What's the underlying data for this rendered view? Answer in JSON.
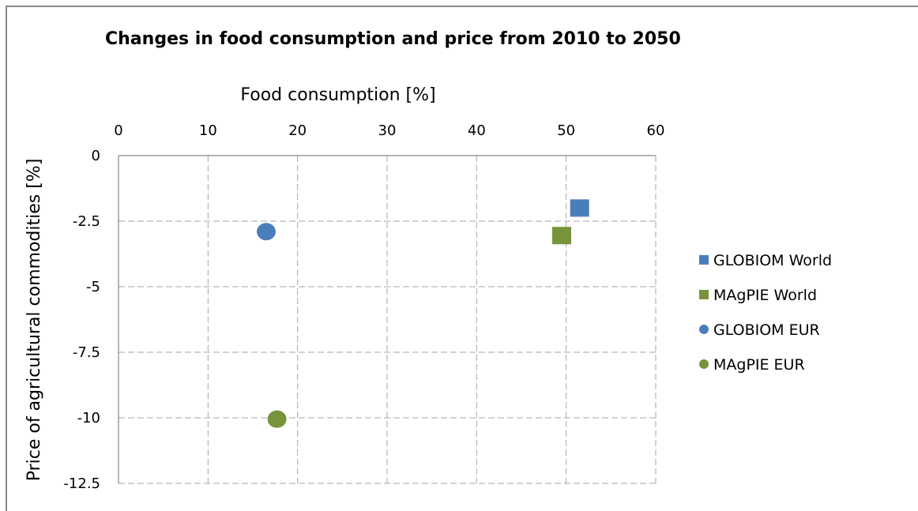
{
  "chart_data": {
    "type": "scatter",
    "title": "Changes in food consumption and price from 2010 to 2050",
    "xlabel": "Food consumption [%]",
    "ylabel": "Price of agricultural commodities [%]",
    "x_axis_position": "top",
    "xlim": [
      0,
      60
    ],
    "ylim": [
      -12.5,
      0
    ],
    "x_ticks": [
      "0",
      "10",
      "20",
      "30",
      "40",
      "50",
      "60"
    ],
    "y_ticks": [
      "0",
      "-2.5",
      "-5",
      "-7.5",
      "-10",
      "-12.5"
    ],
    "x_tick_values": [
      0,
      10,
      20,
      30,
      40,
      50,
      60
    ],
    "y_tick_values": [
      0,
      -2.5,
      -5,
      -7.5,
      -10,
      -12.5
    ],
    "grid": true,
    "grid_style": "dashed",
    "legend_position": "right",
    "series": [
      {
        "name": "GLOBIOM World",
        "marker": "square",
        "color": "#4a7ebb",
        "points": [
          {
            "x": 51.5,
            "y": -2.0
          }
        ]
      },
      {
        "name": "MAgPIE World",
        "marker": "square",
        "color": "#77933c",
        "points": [
          {
            "x": 49.5,
            "y": -3.05
          }
        ]
      },
      {
        "name": "GLOBIOM EUR",
        "marker": "circle",
        "color": "#4a7ebb",
        "points": [
          {
            "x": 16.5,
            "y": -2.9
          }
        ]
      },
      {
        "name": "MAgPIE EUR",
        "marker": "circle",
        "color": "#77933c",
        "points": [
          {
            "x": 17.7,
            "y": -10.05
          }
        ]
      }
    ]
  }
}
